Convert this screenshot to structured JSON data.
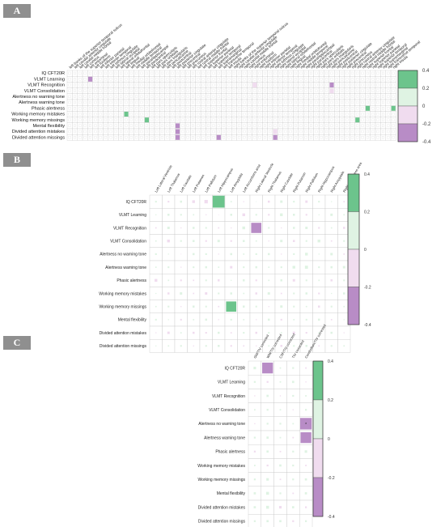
{
  "panels": [
    {
      "label": "A"
    },
    {
      "label": "B"
    },
    {
      "label": "C"
    }
  ],
  "chart_data": [
    {
      "type": "heatmap",
      "panel": "A",
      "rows": [
        "IQ CFT20R",
        "VLMT Learning",
        "VLMT Recognition",
        "VLMT Consolidation",
        "Alertness no warning tone",
        "Alertness warning tone",
        "Phasic alertness",
        "Working memory mistakes",
        "Working memory missings",
        "Mental flexibility",
        "Divided attention mistakes",
        "Divided attention missings"
      ],
      "columns": [
        "left banks of the superior temporal sulcus",
        "left caudal anterior cingulate",
        "left caudal middle frontal",
        "left cuneus",
        "left entorhinal",
        "left fusiform",
        "left inferior parietal",
        "left inferior temporal",
        "left isthmus cingulate",
        "left lateral occipital",
        "left lateral orbitofrontal",
        "left lingual",
        "left medial orbitofrontal",
        "left middle temporal",
        "left parahippocampal",
        "left paracentral",
        "left pars opercularis",
        "left pars orbitalis",
        "left pars triangularis",
        "left pericalcarine",
        "left postcentral",
        "left posterior cingulate",
        "left precentral",
        "left precuneus",
        "left rostral anterior cingulate",
        "left rostral middle frontal",
        "left superior frontal",
        "left superior parietal",
        "left superior temporal",
        "left supramarginal",
        "left transverse temporal",
        "left insula",
        "right banks of the superior temporal sulcus",
        "right caudal anterior cingulate",
        "right caudal middle frontal",
        "right cuneus",
        "right entorhinal",
        "right fusiform",
        "right inferior parietal",
        "right inferior temporal",
        "right isthmus cingulate",
        "right lateral occipital",
        "right lateral orbitofrontal",
        "right lingual",
        "right medial orbitofrontal",
        "right middle temporal",
        "right parahippocampal",
        "right paracentral",
        "right pars opercularis",
        "right pars orbitalis",
        "right pars triangularis",
        "right pericalcarine",
        "right postcentral",
        "right posterior cingulate",
        "right precentral",
        "right precuneus",
        "right rostral anterior cingulate",
        "right rostral middle frontal",
        "right superior frontal",
        "right superior parietal",
        "right superior temporal",
        "right supramarginal",
        "right transverse temporal",
        "right insula"
      ],
      "highlights": [
        {
          "row": 1,
          "col": 4,
          "value": -0.25
        },
        {
          "row": 2,
          "col": 51,
          "value": -0.22
        },
        {
          "row": 2,
          "col": 36,
          "value": -0.2
        },
        {
          "row": 3,
          "col": 51,
          "value": -0.2
        },
        {
          "row": 6,
          "col": 58,
          "value": 0.28
        },
        {
          "row": 6,
          "col": 63,
          "value": 0.26
        },
        {
          "row": 7,
          "col": 11,
          "value": 0.3
        },
        {
          "row": 8,
          "col": 15,
          "value": 0.25
        },
        {
          "row": 8,
          "col": 56,
          "value": 0.24
        },
        {
          "row": 9,
          "col": 21,
          "value": -0.22
        },
        {
          "row": 10,
          "col": 21,
          "value": -0.3
        },
        {
          "row": 10,
          "col": 40,
          "value": -0.2
        },
        {
          "row": 11,
          "col": 21,
          "value": -0.25
        },
        {
          "row": 11,
          "col": 29,
          "value": -0.22
        },
        {
          "row": 11,
          "col": 40,
          "value": -0.22
        }
      ],
      "scale": {
        "min": -0.4,
        "max": 0.4,
        "ticks": [
          "0.4",
          "0.2",
          "0",
          "-0.2",
          "-0.4"
        ]
      }
    },
    {
      "type": "heatmap",
      "panel": "B",
      "rows": [
        "IQ CFT20R",
        "VLMT Learning",
        "VLMT Recognition",
        "VLMT Consolidation",
        "Alertness no warning tone",
        "Alertness warning tone",
        "Phasic alertness",
        "Working memory mistakes",
        "Working memory missings",
        "Mental flexibility",
        "Divided attention mistakes",
        "Divided attention missings"
      ],
      "columns": [
        "Left Lateral Ventricle",
        "Left Thalamus",
        "Left Caudate",
        "Left Putamen",
        "Left Pallidum",
        "Left Hippocampus",
        "Left Amygdala",
        "Left Accumbens area",
        "Right Lateral Ventricle",
        "Right Thalamus",
        "Right Caudate",
        "Right Putamen",
        "Right Pallidum",
        "Right Hippocampus",
        "Right Amygdala",
        "Right Accumbens area"
      ],
      "values": [
        [
          0.05,
          -0.05,
          0.06,
          -0.08,
          -0.1,
          0.35,
          0.04,
          -0.03,
          0.02,
          -0.06,
          0.07,
          0.05,
          -0.07,
          0.05,
          0.03,
          -0.04
        ],
        [
          0.03,
          0.06,
          0.05,
          0.04,
          -0.03,
          -0.02,
          0.06,
          -0.08,
          0.05,
          -0.05,
          0.08,
          0.06,
          -0.05,
          0.03,
          0.07,
          0.04
        ],
        [
          -0.04,
          0.07,
          -0.03,
          0.06,
          0.05,
          -0.04,
          -0.03,
          0.08,
          -0.3,
          0.05,
          -0.03,
          0.06,
          0.07,
          -0.05,
          0.04,
          -0.06
        ],
        [
          0.04,
          -0.08,
          0.05,
          0.06,
          -0.05,
          0.07,
          -0.05,
          0.06,
          0.04,
          -0.03,
          0.07,
          -0.06,
          0.05,
          0.08,
          -0.04,
          0.05
        ],
        [
          0.05,
          0.03,
          -0.02,
          0.06,
          0.05,
          -0.03,
          0.06,
          0.04,
          0.05,
          0.06,
          -0.03,
          0.05,
          0.08,
          0.03,
          0.07,
          -0.04
        ],
        [
          0.04,
          0.05,
          -0.03,
          0.05,
          0.06,
          0.04,
          -0.07,
          0.05,
          0.06,
          0.04,
          0.05,
          0.08,
          0.09,
          0.05,
          0.06,
          0.07
        ],
        [
          -0.08,
          0.04,
          -0.05,
          -0.04,
          0.05,
          -0.06,
          0.03,
          0.06,
          -0.05,
          0.04,
          0.06,
          -0.07,
          0.05,
          0.04,
          -0.06,
          0.05
        ],
        [
          0.03,
          -0.06,
          0.07,
          -0.04,
          -0.07,
          0.05,
          0.06,
          0.04,
          -0.06,
          0.07,
          -0.04,
          0.05,
          0.06,
          -0.05,
          0.03,
          0.06
        ],
        [
          0.04,
          0.05,
          -0.03,
          0.06,
          0.05,
          -0.04,
          0.3,
          0.06,
          0.05,
          -0.03,
          0.07,
          0.05,
          0.04,
          -0.06,
          0.05,
          0.04
        ],
        [
          0.05,
          0.03,
          -0.05,
          0.04,
          0.06,
          -0.03,
          0.05,
          0.04,
          -0.03,
          0.06,
          -0.05,
          0.04,
          0.05,
          0.06,
          -0.04,
          0.03
        ],
        [
          -0.03,
          -0.07,
          0.04,
          -0.06,
          -0.05,
          0.06,
          -0.04,
          0.05,
          -0.06,
          0.05,
          0.04,
          -0.07,
          -0.05,
          0.04,
          0.06,
          -0.03
        ],
        [
          0.03,
          0.04,
          0.05,
          -0.03,
          0.05,
          0.06,
          -0.05,
          -0.04,
          -0.03,
          0.04,
          -0.06,
          0.05,
          0.06,
          -0.04,
          0.05,
          0.04
        ]
      ],
      "scale": {
        "min": -0.4,
        "max": 0.4,
        "ticks": [
          "0.4",
          "0.2",
          "0",
          "-0.2",
          "-0.4"
        ]
      }
    },
    {
      "type": "heatmap",
      "panel": "C",
      "rows": [
        "IQ CFT20R",
        "VLMT Learning",
        "VLMT Recognition",
        "VLMT Consolidation",
        "Alertness no warning tone",
        "Alertness warning tone",
        "Phasic alertness",
        "Working memory mistakes",
        "Working memory missings",
        "Mental flexibility",
        "Divided attention mistakes",
        "Divided attention missings"
      ],
      "columns": [
        "GM/TIV corrected",
        "WM/TIV corrected",
        "CSF/TIV corrected",
        "TIV corrected",
        "Cerebellum/TIV corrected"
      ],
      "values": [
        [
          0.07,
          -0.3,
          0.04,
          0.05,
          -0.04
        ],
        [
          0.05,
          -0.05,
          0.04,
          0.06,
          -0.03
        ],
        [
          -0.03,
          0.06,
          -0.03,
          0.05,
          0.04
        ],
        [
          0.04,
          0.05,
          0.04,
          -0.03,
          0.05
        ],
        [
          -0.03,
          0.05,
          0.05,
          0.04,
          -0.32
        ],
        [
          0.05,
          0.06,
          0.04,
          -0.04,
          -0.3
        ],
        [
          -0.05,
          0.06,
          -0.04,
          0.05,
          0.07
        ],
        [
          0.04,
          -0.05,
          0.06,
          0.05,
          -0.04
        ],
        [
          0.05,
          0.07,
          -0.04,
          0.05,
          0.06
        ],
        [
          0.06,
          0.08,
          0.05,
          -0.04,
          0.06
        ],
        [
          0.06,
          0.08,
          -0.07,
          0.06,
          -0.05
        ],
        [
          0.05,
          0.06,
          0.06,
          -0.05,
          0.05
        ]
      ],
      "annotations": [
        {
          "row": 4,
          "col": 4,
          "text": "*"
        }
      ],
      "scale": {
        "min": -0.4,
        "max": 0.4,
        "ticks": [
          "0.4",
          "0.2",
          "0",
          "-0.2",
          "-0.4"
        ]
      }
    }
  ],
  "colors": {
    "positive_strong": "#6cc48c",
    "positive_light": "#dff3e3",
    "negative_light": "#f0dcef",
    "negative_strong": "#b88cc6",
    "grid": "#c8c8c8",
    "label_bg": "#8f8f8f"
  }
}
